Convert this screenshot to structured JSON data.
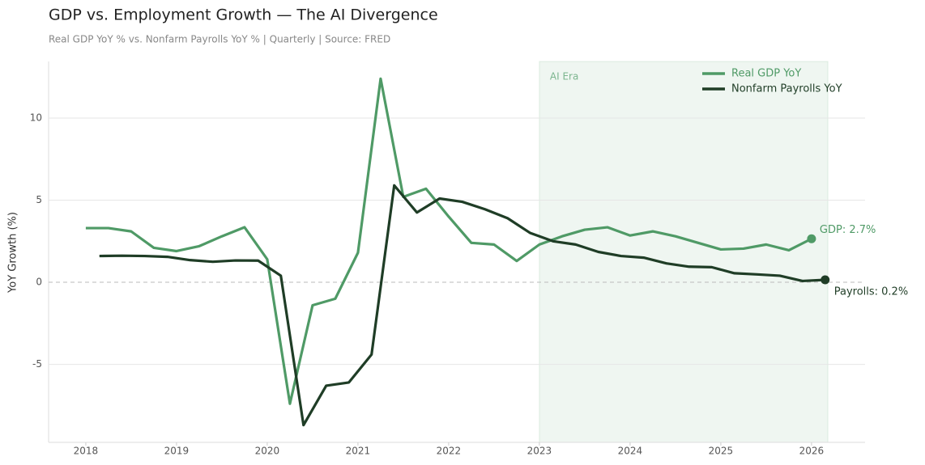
{
  "chart_data": {
    "type": "line",
    "title": "GDP vs. Employment Growth — The AI Divergence",
    "subtitle": "Real GDP YoY % vs. Nonfarm Payrolls YoY %  |  Quarterly  |  Source: FRED",
    "y_label": "YoY Growth (%)",
    "xlim": [
      2017.59,
      2026.59
    ],
    "ylim": [
      -9.75,
      13.45
    ],
    "xticks": [
      2018,
      2019,
      2020,
      2021,
      2022,
      2023,
      2024,
      2025,
      2026
    ],
    "yticks": [
      -5,
      0,
      5,
      10
    ],
    "grid": true,
    "legend": "upper right",
    "shaded_region": {
      "label": "AI Era",
      "x": [
        2023,
        2026.18
      ],
      "color": "#4a9a64"
    },
    "series": [
      {
        "name": "Real GDP YoY",
        "color": "#4f9a66",
        "x": [
          2018,
          2018.25,
          2018.5,
          2018.75,
          2019,
          2019.25,
          2019.5,
          2019.75,
          2020,
          2020.25,
          2020.5,
          2020.75,
          2021,
          2021.25,
          2021.5,
          2021.75,
          2022,
          2022.25,
          2022.5,
          2022.75,
          2023,
          2023.25,
          2023.5,
          2023.75,
          2024,
          2024.25,
          2024.5,
          2024.75,
          2025,
          2025.25,
          2025.5,
          2025.75,
          2026
        ],
        "values": [
          3.3,
          3.3,
          3.1,
          2.1,
          1.9,
          2.2,
          2.8,
          3.35,
          1.4,
          -7.4,
          -1.4,
          -1.0,
          1.8,
          12.4,
          5.2,
          5.7,
          4.0,
          2.4,
          2.3,
          1.3,
          2.3,
          2.8,
          3.2,
          3.35,
          2.85,
          3.1,
          2.8,
          2.4,
          2.0,
          2.05,
          2.3,
          1.95,
          2.65
        ]
      },
      {
        "name": "Nonfarm Payrolls YoY",
        "color": "#1f3d26",
        "x": [
          2018.15,
          2018.4,
          2018.65,
          2018.9,
          2019.15,
          2019.4,
          2019.65,
          2019.9,
          2020.15,
          2020.4,
          2020.65,
          2020.9,
          2021.15,
          2021.4,
          2021.65,
          2021.9,
          2022.15,
          2022.4,
          2022.65,
          2022.9,
          2023.15,
          2023.4,
          2023.65,
          2023.9,
          2024.15,
          2024.4,
          2024.65,
          2024.9,
          2025.15,
          2025.4,
          2025.65,
          2025.9,
          2026.15
        ],
        "values": [
          1.6,
          1.62,
          1.6,
          1.55,
          1.35,
          1.25,
          1.33,
          1.32,
          0.4,
          -8.7,
          -6.3,
          -6.1,
          -4.4,
          5.9,
          4.25,
          5.1,
          4.9,
          4.45,
          3.9,
          3.0,
          2.5,
          2.3,
          1.85,
          1.6,
          1.5,
          1.15,
          0.95,
          0.92,
          0.55,
          0.48,
          0.4,
          0.08,
          0.15
        ]
      }
    ],
    "annotations": [
      {
        "text": "GDP: 2.7%",
        "series": 0
      },
      {
        "text": "Payrolls: 0.2%",
        "series": 1
      }
    ]
  }
}
